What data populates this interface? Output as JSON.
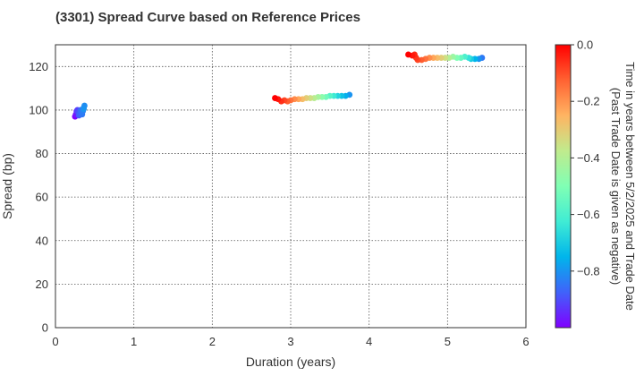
{
  "chart_data": {
    "type": "scatter",
    "title": "(3301)   Spread Curve based on Reference Prices",
    "xlabel": "Duration (years)",
    "ylabel": "Spread (bp)",
    "xlim": [
      0,
      6
    ],
    "ylim": [
      0,
      130
    ],
    "xticks": [
      0,
      1,
      2,
      3,
      4,
      5,
      6
    ],
    "yticks": [
      0,
      20,
      40,
      60,
      80,
      100,
      120
    ],
    "grid": true,
    "colorbar": {
      "label_lines": [
        "Time in years between 5/2/2025 and Trade Date",
        "(Past Trade Date is given as negative)"
      ],
      "range": [
        -1.0,
        0.0
      ],
      "ticks": [
        0.0,
        -0.2,
        -0.4,
        -0.6,
        -0.8
      ],
      "tick_labels": [
        "0.0",
        "−0.2",
        "−0.4",
        "−0.6",
        "−0.8"
      ],
      "colormap": "rainbow"
    },
    "series": [
      {
        "points": [
          {
            "x": 0.25,
            "y": 97.0,
            "c": -1.0
          },
          {
            "x": 0.26,
            "y": 98.0,
            "c": -0.97
          },
          {
            "x": 0.27,
            "y": 99.5,
            "c": -0.94
          },
          {
            "x": 0.28,
            "y": 100.0,
            "c": -0.92
          },
          {
            "x": 0.29,
            "y": 99.0,
            "c": -0.9
          },
          {
            "x": 0.3,
            "y": 97.5,
            "c": -0.88
          },
          {
            "x": 0.31,
            "y": 98.5,
            "c": -0.87
          },
          {
            "x": 0.32,
            "y": 100.0,
            "c": -0.86
          },
          {
            "x": 0.33,
            "y": 99.0,
            "c": -0.85
          },
          {
            "x": 0.34,
            "y": 98.0,
            "c": -0.84
          },
          {
            "x": 0.35,
            "y": 99.5,
            "c": -0.83
          },
          {
            "x": 0.36,
            "y": 101.0,
            "c": -0.82
          },
          {
            "x": 0.37,
            "y": 102.0,
            "c": -0.81
          },
          {
            "x": 0.36,
            "y": 100.5,
            "c": -0.8
          },
          {
            "x": 2.8,
            "y": 105.5,
            "c": 0.0
          },
          {
            "x": 2.84,
            "y": 105.0,
            "c": -0.03
          },
          {
            "x": 2.88,
            "y": 104.0,
            "c": -0.06
          },
          {
            "x": 2.92,
            "y": 104.5,
            "c": -0.09
          },
          {
            "x": 2.96,
            "y": 104.0,
            "c": -0.12
          },
          {
            "x": 3.0,
            "y": 104.5,
            "c": -0.15
          },
          {
            "x": 3.05,
            "y": 105.0,
            "c": -0.19
          },
          {
            "x": 3.1,
            "y": 105.0,
            "c": -0.23
          },
          {
            "x": 3.15,
            "y": 105.0,
            "c": -0.27
          },
          {
            "x": 3.2,
            "y": 105.5,
            "c": -0.31
          },
          {
            "x": 3.25,
            "y": 105.5,
            "c": -0.35
          },
          {
            "x": 3.3,
            "y": 105.5,
            "c": -0.39
          },
          {
            "x": 3.35,
            "y": 106.0,
            "c": -0.43
          },
          {
            "x": 3.4,
            "y": 106.0,
            "c": -0.48
          },
          {
            "x": 3.45,
            "y": 106.0,
            "c": -0.53
          },
          {
            "x": 3.5,
            "y": 106.5,
            "c": -0.58
          },
          {
            "x": 3.55,
            "y": 106.5,
            "c": -0.63
          },
          {
            "x": 3.6,
            "y": 106.5,
            "c": -0.68
          },
          {
            "x": 3.65,
            "y": 106.5,
            "c": -0.72
          },
          {
            "x": 3.7,
            "y": 106.5,
            "c": -0.76
          },
          {
            "x": 3.75,
            "y": 107.0,
            "c": -0.8
          },
          {
            "x": 4.5,
            "y": 125.5,
            "c": 0.0
          },
          {
            "x": 4.55,
            "y": 125.0,
            "c": -0.03
          },
          {
            "x": 4.58,
            "y": 125.5,
            "c": -0.05
          },
          {
            "x": 4.6,
            "y": 124.0,
            "c": -0.07
          },
          {
            "x": 4.62,
            "y": 123.0,
            "c": -0.09
          },
          {
            "x": 4.67,
            "y": 123.0,
            "c": -0.12
          },
          {
            "x": 4.72,
            "y": 123.5,
            "c": -0.15
          },
          {
            "x": 4.77,
            "y": 124.0,
            "c": -0.19
          },
          {
            "x": 4.82,
            "y": 124.0,
            "c": -0.23
          },
          {
            "x": 4.87,
            "y": 124.0,
            "c": -0.27
          },
          {
            "x": 4.92,
            "y": 124.0,
            "c": -0.31
          },
          {
            "x": 4.97,
            "y": 124.0,
            "c": -0.35
          },
          {
            "x": 5.02,
            "y": 124.0,
            "c": -0.4
          },
          {
            "x": 5.07,
            "y": 124.5,
            "c": -0.45
          },
          {
            "x": 5.12,
            "y": 124.0,
            "c": -0.5
          },
          {
            "x": 5.17,
            "y": 124.0,
            "c": -0.55
          },
          {
            "x": 5.22,
            "y": 124.5,
            "c": -0.6
          },
          {
            "x": 5.27,
            "y": 124.0,
            "c": -0.65
          },
          {
            "x": 5.3,
            "y": 123.5,
            "c": -0.7
          },
          {
            "x": 5.35,
            "y": 123.5,
            "c": -0.75
          },
          {
            "x": 5.4,
            "y": 123.5,
            "c": -0.8
          },
          {
            "x": 5.44,
            "y": 124.0,
            "c": -0.84
          }
        ]
      }
    ]
  }
}
